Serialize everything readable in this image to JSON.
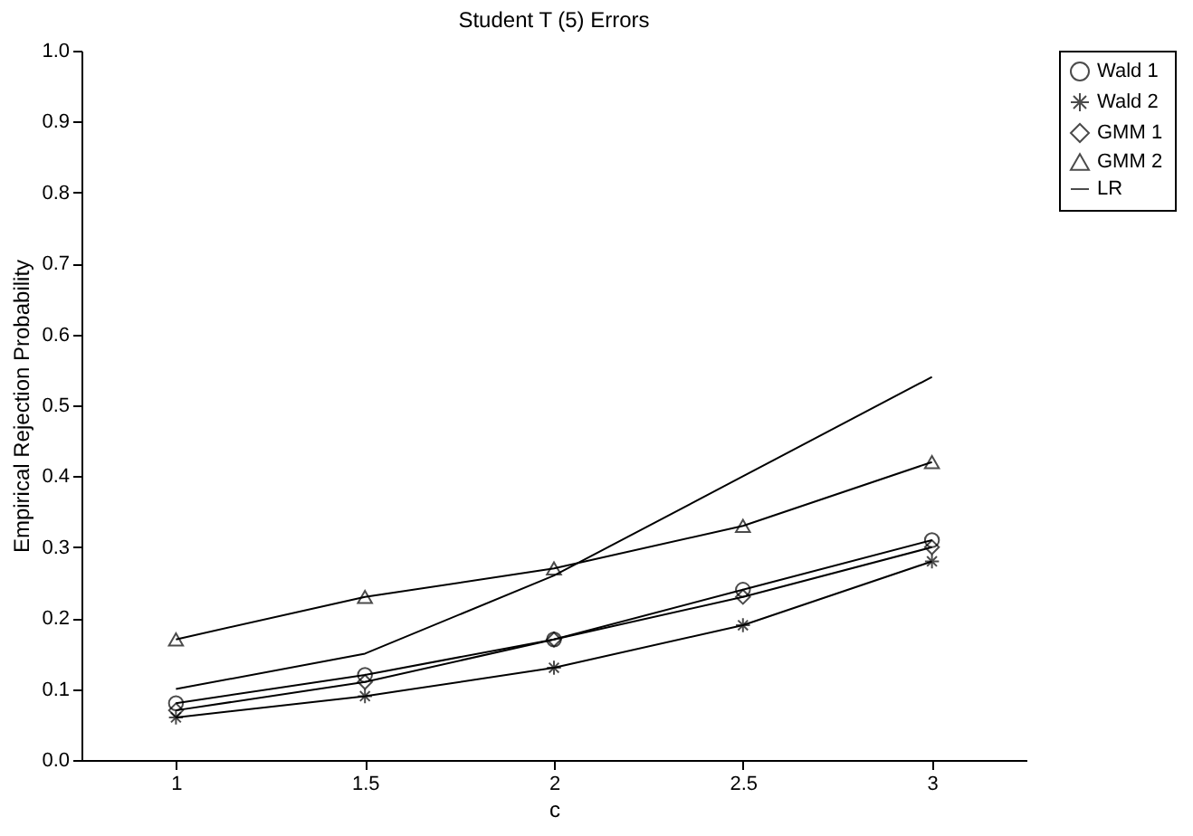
{
  "chart_data": {
    "type": "line",
    "title": "Student T (5) Errors",
    "xlabel": "c",
    "ylabel": "Empirical Rejection Probability",
    "categories": [
      "1",
      "1.5",
      "2",
      "2.5",
      "3"
    ],
    "ylim": [
      0,
      1
    ],
    "yticks": [
      {
        "value": 0,
        "label": "0.0"
      },
      {
        "value": 0.1,
        "label": "0.1"
      },
      {
        "value": 0.2,
        "label": "0.2"
      },
      {
        "value": 0.3,
        "label": "0.3"
      },
      {
        "value": 0.4,
        "label": "0.4"
      },
      {
        "value": 0.5,
        "label": "0.5"
      },
      {
        "value": 0.6,
        "label": "0.6"
      },
      {
        "value": 0.7,
        "label": "0.7"
      },
      {
        "value": 0.8,
        "label": "0.8"
      },
      {
        "value": 0.9,
        "label": "0.9"
      },
      {
        "value": 1,
        "label": "1.0"
      }
    ],
    "grid": false,
    "legend": "right",
    "line_style": "solid",
    "series": [
      {
        "name": "Wald 1",
        "color": "#000000",
        "marker": "circle",
        "values": [
          0.08,
          0.12,
          0.17,
          0.24,
          0.31
        ]
      },
      {
        "name": "Wald 2",
        "color": "#000000",
        "marker": "cross",
        "values": [
          0.06,
          0.09,
          0.13,
          0.19,
          0.28
        ]
      },
      {
        "name": "GMM 1",
        "color": "#000000",
        "marker": "diamond",
        "values": [
          0.07,
          0.11,
          0.17,
          0.23,
          0.3
        ]
      },
      {
        "name": "GMM 2",
        "color": "#000000",
        "marker": "triangle",
        "values": [
          0.17,
          0.23,
          0.27,
          0.33,
          0.42
        ]
      },
      {
        "name": "LR",
        "color": "#000000",
        "marker": "none",
        "values": [
          0.1,
          0.15,
          0.26,
          0.4,
          0.54
        ]
      }
    ]
  }
}
